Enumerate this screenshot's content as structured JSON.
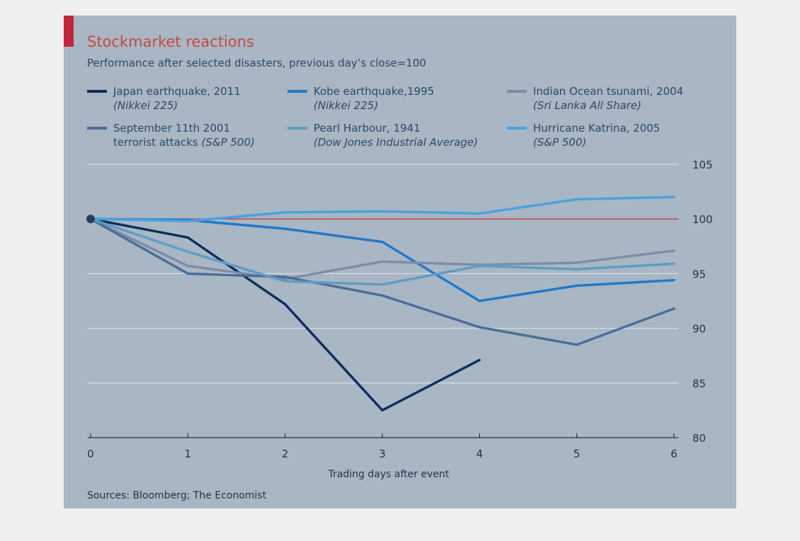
{
  "chart_data": {
    "type": "line",
    "title": "Stockmarket reactions",
    "subtitle": "Performance after selected disasters, previous day’s close=100",
    "xlabel": "Trading days after event",
    "ylabel": "",
    "x": [
      0,
      1,
      2,
      3,
      4,
      5,
      6
    ],
    "xlim": [
      0,
      6
    ],
    "ylim": [
      80,
      105
    ],
    "y_ticks": [
      80,
      85,
      90,
      95,
      100,
      105
    ],
    "y_axis_side": "right",
    "grid": true,
    "reference_line": {
      "y": 100,
      "color": "#c0485a"
    },
    "legend_placement": "top",
    "series": [
      {
        "name": "Japan earthquake, 2011",
        "name_sub": "(Nikkei 225)",
        "color": "#0c2d5a",
        "points": [
          [
            0,
            100
          ],
          [
            1,
            98.3
          ],
          [
            2,
            92.2
          ],
          [
            3,
            82.5
          ],
          [
            4,
            87.1
          ]
        ]
      },
      {
        "name": "Kobe earthquake,1995",
        "name_sub": "(Nikkei 225)",
        "color": "#1f79c9",
        "points": [
          [
            0,
            100
          ],
          [
            1,
            99.9
          ],
          [
            2,
            99.1
          ],
          [
            3,
            97.9
          ],
          [
            4,
            92.5
          ],
          [
            5,
            93.9
          ],
          [
            6,
            94.4
          ]
        ]
      },
      {
        "name": "Indian Ocean tsunami, 2004",
        "name_sub": "(Sri Lanka All Share)",
        "color": "#7d8ca6",
        "points": [
          [
            0,
            100
          ],
          [
            1,
            95.7
          ],
          [
            2,
            94.5
          ],
          [
            3,
            96.1
          ],
          [
            4,
            95.8
          ],
          [
            5,
            96.0
          ],
          [
            6,
            97.1
          ]
        ]
      },
      {
        "name": "September 11th 2001",
        "name_sub": "terrorist attacks (S&P 500)",
        "color": "#4a6e98",
        "points": [
          [
            0,
            100
          ],
          [
            1,
            95.0
          ],
          [
            2,
            94.7
          ],
          [
            3,
            93.0
          ],
          [
            4,
            90.1
          ],
          [
            5,
            88.5
          ],
          [
            6,
            91.8
          ]
        ]
      },
      {
        "name": "Pearl Harbour, 1941",
        "name_sub": "(Dow Jones Industrial Average)",
        "color": "#5f9cc4",
        "points": [
          [
            0,
            100
          ],
          [
            1,
            97.0
          ],
          [
            2,
            94.3
          ],
          [
            3,
            94.0
          ],
          [
            4,
            95.7
          ],
          [
            5,
            95.4
          ],
          [
            6,
            95.9
          ]
        ]
      },
      {
        "name": "Hurricane Katrina, 2005",
        "name_sub": "(S&P 500)",
        "color": "#48a2e0",
        "points": [
          [
            0,
            100
          ],
          [
            1,
            99.8
          ],
          [
            2,
            100.6
          ],
          [
            3,
            100.7
          ],
          [
            4,
            100.5
          ],
          [
            5,
            101.8
          ],
          [
            6,
            102.0
          ]
        ]
      }
    ],
    "source": "Sources: Bloomberg; The Economist"
  },
  "colors": {
    "background": "#a9b6c4",
    "grid": "#d7dde4",
    "accent_bar": "#c0283c"
  }
}
